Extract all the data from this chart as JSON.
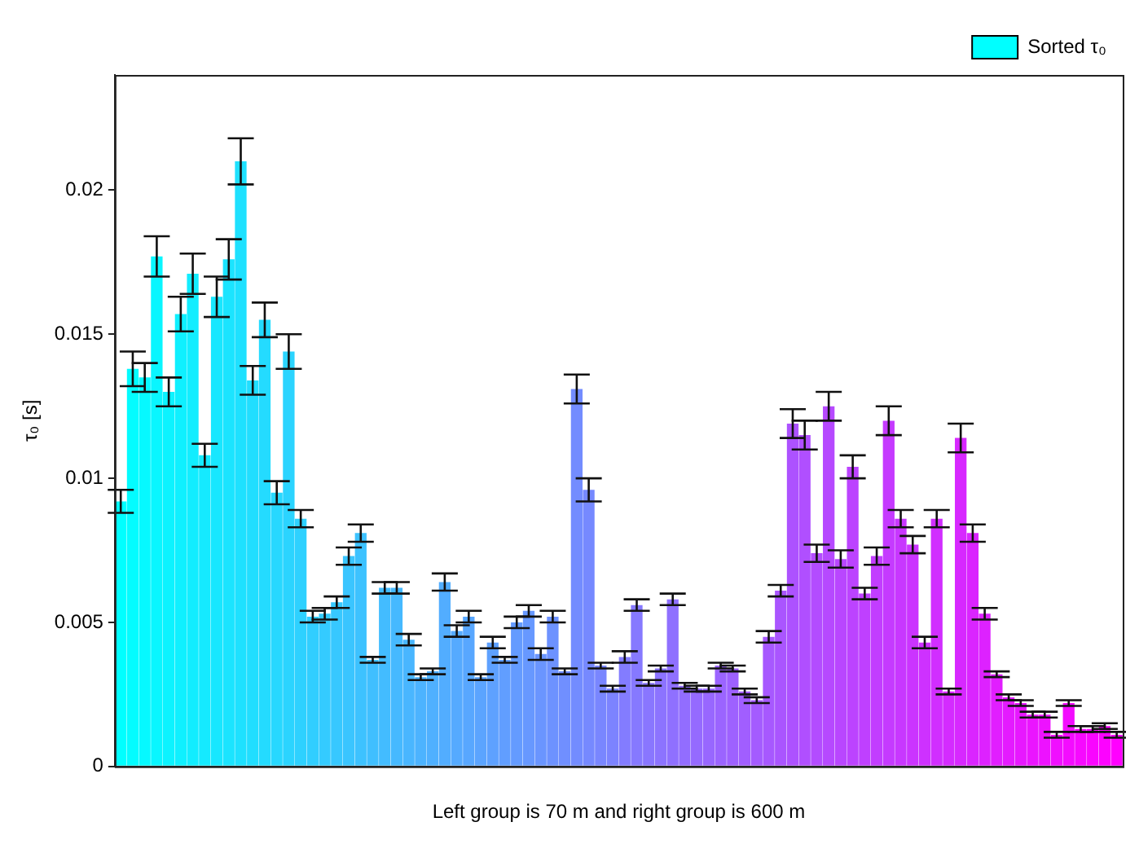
{
  "chart_data": {
    "type": "bar",
    "xlabel": "Left group is 70 m and right group is 600 m",
    "ylabel": "τ₀ [s]",
    "categories": [
      null,
      null,
      null,
      null,
      null,
      null,
      null,
      null,
      null,
      null,
      null,
      null,
      null,
      null,
      null,
      null,
      null,
      null,
      null,
      null,
      null,
      null,
      null,
      null,
      null,
      null,
      null,
      null,
      null,
      null,
      null,
      null,
      null,
      null,
      null,
      null,
      null,
      null,
      null,
      null,
      null,
      null,
      null,
      null,
      null,
      null,
      null,
      null,
      null,
      null,
      null,
      null,
      null,
      null,
      null,
      null,
      null,
      null,
      null,
      null,
      null,
      null,
      null,
      null,
      null,
      null,
      null,
      null,
      null,
      null,
      null,
      null,
      null,
      null,
      null,
      null,
      null,
      null,
      null,
      null,
      null,
      null,
      null,
      null
    ],
    "series": [
      {
        "name": "Sorted τ₀",
        "color": "#00ffff",
        "values": [
          0.0092,
          0.0138,
          0.0135,
          0.0177,
          0.013,
          0.0157,
          0.0171,
          0.0108,
          0.0163,
          0.0176,
          0.021,
          0.0134,
          0.0155,
          0.0095,
          0.0144,
          0.0086,
          0.0052,
          0.0053,
          0.0057,
          0.0073,
          0.0081,
          0.0037,
          0.0062,
          0.0062,
          0.0044,
          0.0031,
          0.0033,
          0.0064,
          0.0047,
          0.0052,
          0.0031,
          0.0043,
          0.0037,
          0.005,
          0.0054,
          0.0039,
          0.0052,
          0.0033,
          0.0131,
          0.0096,
          0.0035,
          0.0027,
          0.0038,
          0.0056,
          0.0029,
          0.0034,
          0.0058,
          0.0028,
          0.0027,
          0.0027,
          0.0035,
          0.0034,
          0.0026,
          0.0023,
          0.0045,
          0.0061,
          0.0119,
          0.0115,
          0.0074,
          0.0125,
          0.0072,
          0.0104,
          0.006,
          0.0073,
          0.012,
          0.0086,
          0.0077,
          0.0043,
          0.0086,
          0.0026,
          0.0114,
          0.0081,
          0.0053,
          0.0032,
          0.0024,
          0.0022,
          0.0018,
          0.0018,
          0.0011,
          0.0022,
          0.0013,
          0.0013,
          0.0014,
          0.0011
        ],
        "errors": [
          0.0004,
          0.0006,
          0.0005,
          0.0007,
          0.0005,
          0.0006,
          0.0007,
          0.0004,
          0.0007,
          0.0007,
          0.0008,
          0.0005,
          0.0006,
          0.0004,
          0.0006,
          0.0003,
          0.0002,
          0.0002,
          0.0002,
          0.0003,
          0.0003,
          0.0001,
          0.0002,
          0.0002,
          0.0002,
          0.0001,
          0.0001,
          0.0003,
          0.0002,
          0.0002,
          0.0001,
          0.0002,
          0.0001,
          0.0002,
          0.0002,
          0.0002,
          0.0002,
          0.0001,
          0.0005,
          0.0004,
          0.0001,
          0.0001,
          0.0002,
          0.0002,
          0.0001,
          0.0001,
          0.0002,
          0.0001,
          0.0001,
          0.0001,
          0.0001,
          0.0001,
          0.0001,
          0.0001,
          0.0002,
          0.0002,
          0.0005,
          0.0005,
          0.0003,
          0.0005,
          0.0003,
          0.0004,
          0.0002,
          0.0003,
          0.0005,
          0.0003,
          0.0003,
          0.0002,
          0.0003,
          0.0001,
          0.0005,
          0.0003,
          0.0002,
          0.0001,
          0.0001,
          0.0001,
          0.0001,
          0.0001,
          0.0001,
          0.0001,
          0.0001,
          0.0001,
          0.0001,
          0.0001
        ],
        "colors": [
          "#00ffff",
          "#03fcff",
          "#06f9ff",
          "#09f6ff",
          "#0cf3ff",
          "#0ff0ff",
          "#12edff",
          "#15eaff",
          "#18e7ff",
          "#1be4ff",
          "#1ee1ff",
          "#21deff",
          "#24dbff",
          "#27d8ff",
          "#2bd4ff",
          "#2ed1ff",
          "#31ceff",
          "#34cbff",
          "#37c8ff",
          "#3ac5ff",
          "#3dc2ff",
          "#40bfff",
          "#43bcff",
          "#46b9ff",
          "#49b6ff",
          "#4cb3ff",
          "#4fb0ff",
          "#52adff",
          "#55aaff",
          "#58a7ff",
          "#5ba4ff",
          "#5ea1ff",
          "#619eff",
          "#649bff",
          "#6798ff",
          "#6a95ff",
          "#6d92ff",
          "#708fff",
          "#738cff",
          "#7689ff",
          "#7986ff",
          "#7c83ff",
          "#837cff",
          "#8679ff",
          "#8976ff",
          "#8c73ff",
          "#8f70ff",
          "#926dff",
          "#956aff",
          "#9867ff",
          "#9b64ff",
          "#9e61ff",
          "#a15eff",
          "#a45bff",
          "#a758ff",
          "#aa55ff",
          "#ad52ff",
          "#b04fff",
          "#b34cff",
          "#b649ff",
          "#b946ff",
          "#bc43ff",
          "#bf40ff",
          "#c23dff",
          "#c53aff",
          "#c837ff",
          "#cb34ff",
          "#ce31ff",
          "#d12eff",
          "#d42bff",
          "#d728ff",
          "#da25ff",
          "#dd22ff",
          "#e11eff",
          "#e41bff",
          "#e718ff",
          "#ea15ff",
          "#ed12ff",
          "#f00fff",
          "#f30cff",
          "#f609ff",
          "#f906ff",
          "#fc03ff",
          "#ff00ff"
        ]
      }
    ],
    "ylim": [
      0,
      0.024
    ],
    "yticks": [
      0,
      0.005,
      0.01,
      0.015,
      0.02
    ],
    "grid": false,
    "legend": "top right"
  }
}
